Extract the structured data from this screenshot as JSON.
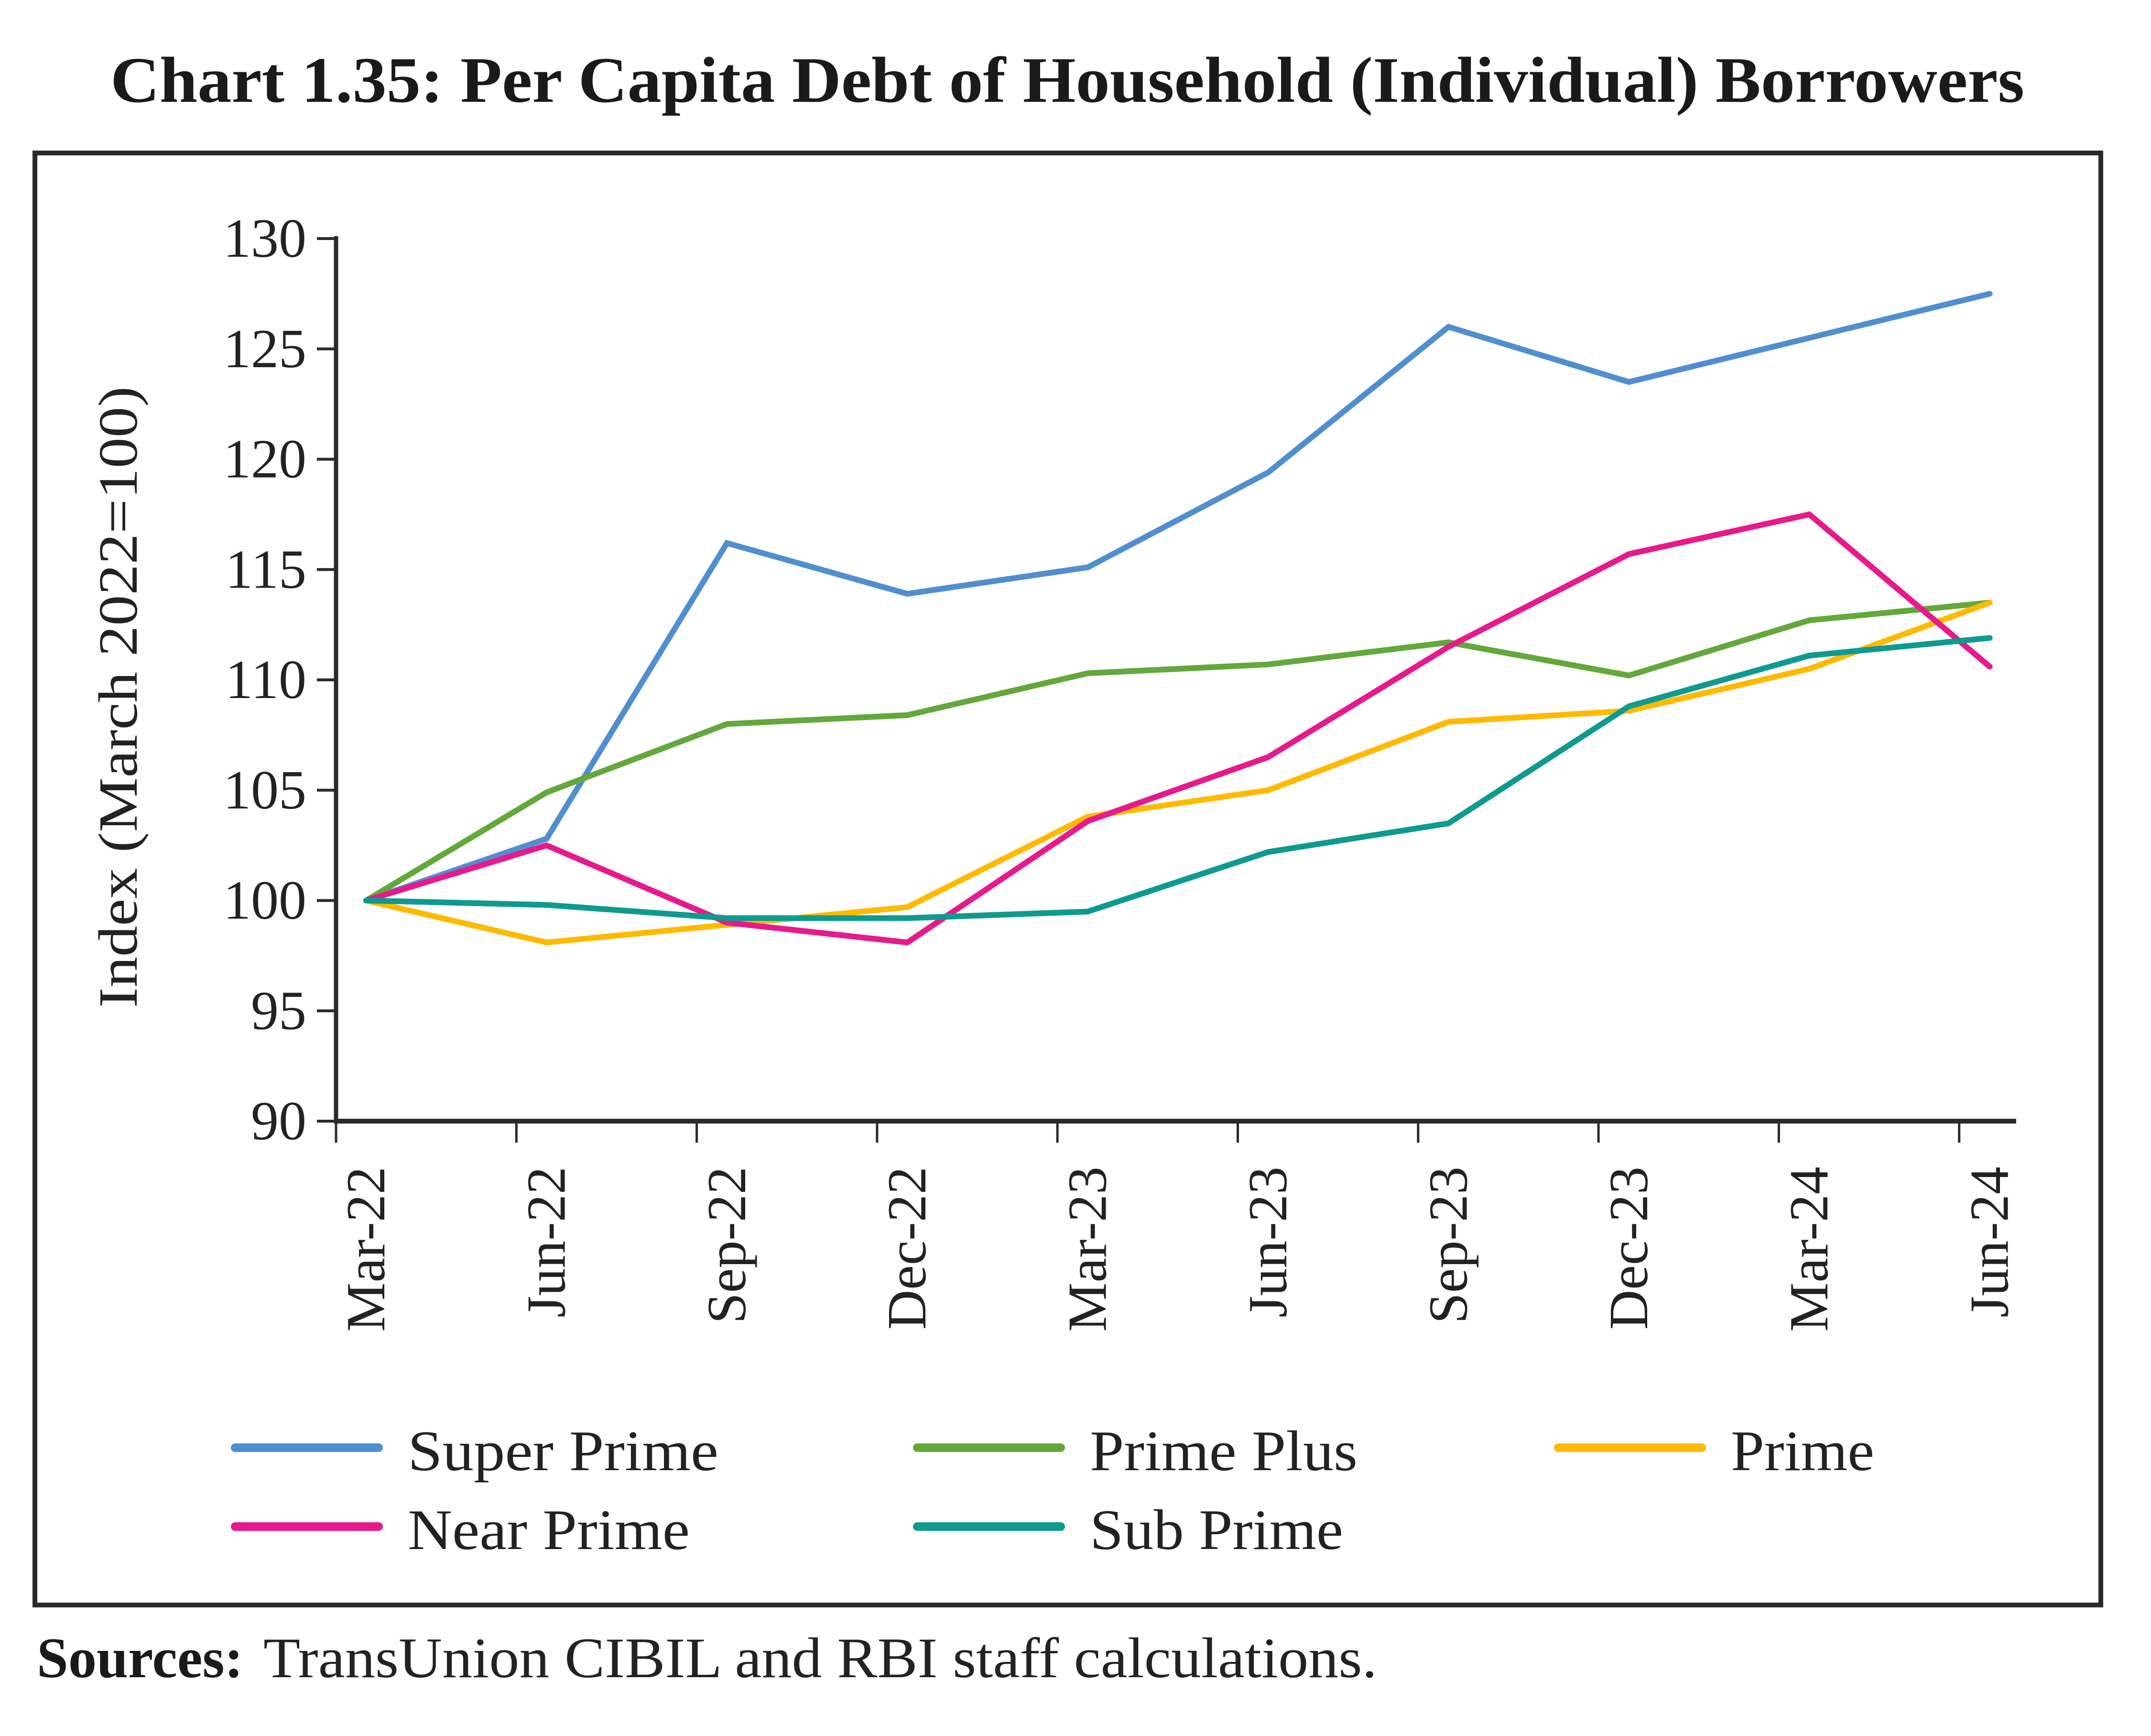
{
  "chart_data": {
    "type": "line",
    "title": "Chart 1.35: Per Capita Debt of Household (Individual) Borrowers",
    "xlabel": "",
    "ylabel": "Index (March 2022=100)",
    "ylim": [
      90,
      130
    ],
    "yticks": [
      "90",
      "95",
      "100",
      "105",
      "110",
      "115",
      "120",
      "125",
      "130"
    ],
    "categories": [
      "Mar-22",
      "Jun-22",
      "Sep-22",
      "Dec-22",
      "Mar-23",
      "Jun-23",
      "Sep-23",
      "Dec-23",
      "Mar-24",
      "Jun-24"
    ],
    "grid": false,
    "legend_position": "bottom",
    "series": [
      {
        "name": "Super Prime",
        "color": "#4F8FD0",
        "values": [
          100,
          102.8,
          116.2,
          113.9,
          115.1,
          119.4,
          126.0,
          123.5,
          125.5,
          127.5
        ]
      },
      {
        "name": "Prime Plus",
        "color": "#62A83A",
        "values": [
          100,
          104.9,
          108.0,
          108.4,
          110.3,
          110.7,
          111.7,
          110.2,
          112.7,
          113.5
        ]
      },
      {
        "name": "Prime",
        "color": "#FFBA00",
        "values": [
          100,
          98.1,
          98.9,
          99.7,
          103.8,
          105.0,
          108.1,
          108.6,
          110.5,
          113.5
        ]
      },
      {
        "name": "Near Prime",
        "color": "#E8198C",
        "values": [
          100,
          102.5,
          99.0,
          98.1,
          103.6,
          106.5,
          111.5,
          115.7,
          117.5,
          110.6
        ]
      },
      {
        "name": "Sub Prime",
        "color": "#0E9A8F",
        "values": [
          100,
          99.8,
          99.2,
          99.2,
          99.5,
          102.2,
          103.5,
          108.8,
          111.1,
          111.9
        ]
      }
    ]
  },
  "footer": {
    "sources_label": "Sources:",
    "sources_text": "TransUnion CIBIL and RBI staff calculations."
  }
}
